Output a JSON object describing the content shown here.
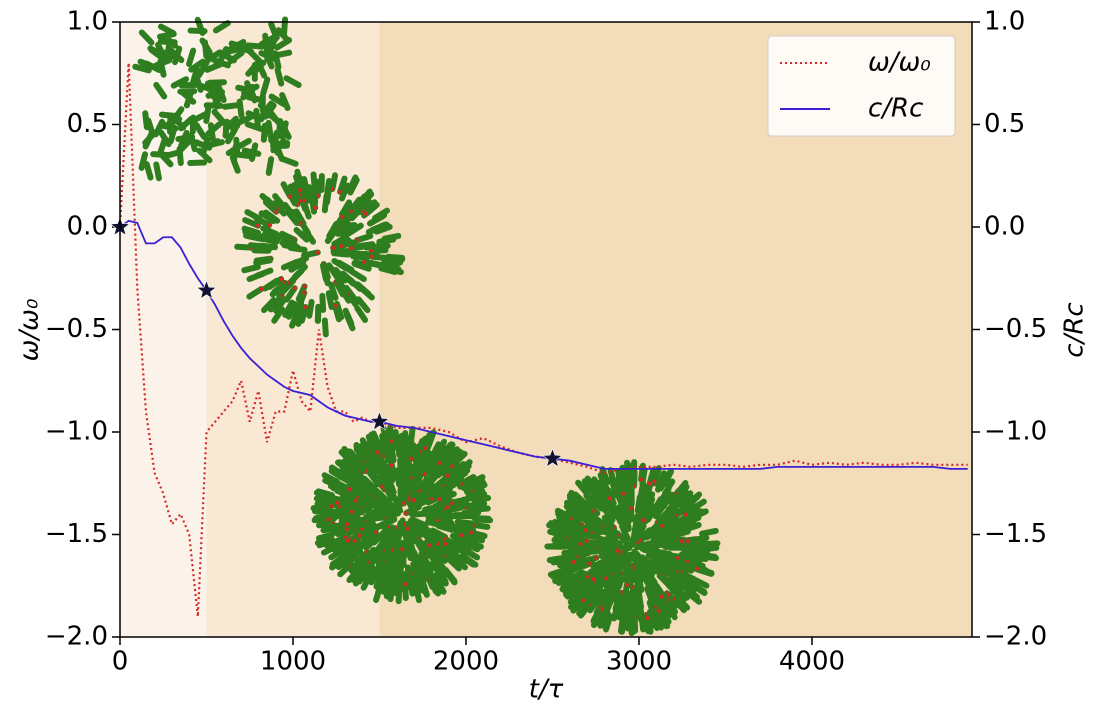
{
  "chart_data": {
    "type": "line",
    "x": [
      0,
      50,
      100,
      150,
      200,
      250,
      300,
      350,
      400,
      450,
      500,
      550,
      600,
      650,
      700,
      750,
      800,
      850,
      900,
      950,
      1000,
      1050,
      1100,
      1150,
      1200,
      1250,
      1300,
      1350,
      1400,
      1450,
      1500,
      1600,
      1700,
      1800,
      1900,
      2000,
      2100,
      2200,
      2300,
      2400,
      2500,
      2600,
      2700,
      2800,
      2900,
      3000,
      3100,
      3200,
      3300,
      3400,
      3500,
      3600,
      3700,
      3800,
      3900,
      4000,
      4100,
      4200,
      4300,
      4400,
      4500,
      4600,
      4700,
      4800,
      4900
    ],
    "series": [
      {
        "name": "ω/ω₀",
        "color": "#d62728",
        "style": "dotted",
        "values": [
          0.0,
          0.8,
          -0.3,
          -0.9,
          -1.2,
          -1.3,
          -1.45,
          -1.4,
          -1.5,
          -1.9,
          -1.0,
          -0.95,
          -0.9,
          -0.85,
          -0.75,
          -0.95,
          -0.8,
          -1.05,
          -0.9,
          -0.9,
          -0.7,
          -0.85,
          -0.9,
          -0.5,
          -0.78,
          -0.9,
          -0.9,
          -0.95,
          -0.93,
          -0.95,
          -0.95,
          -0.98,
          -0.98,
          -0.98,
          -1.0,
          -1.05,
          -1.03,
          -1.07,
          -1.1,
          -1.12,
          -1.13,
          -1.15,
          -1.17,
          -1.2,
          -1.18,
          -1.17,
          -1.17,
          -1.16,
          -1.17,
          -1.16,
          -1.16,
          -1.17,
          -1.16,
          -1.16,
          -1.14,
          -1.16,
          -1.15,
          -1.16,
          -1.15,
          -1.16,
          -1.16,
          -1.15,
          -1.16,
          -1.16,
          -1.16
        ]
      },
      {
        "name": "c/Rc",
        "color": "#3a1fd6",
        "style": "solid",
        "axis": "y2",
        "values": [
          0.0,
          0.03,
          0.02,
          -0.08,
          -0.08,
          -0.05,
          -0.05,
          -0.1,
          -0.18,
          -0.25,
          -0.31,
          -0.38,
          -0.46,
          -0.53,
          -0.59,
          -0.64,
          -0.68,
          -0.72,
          -0.75,
          -0.78,
          -0.8,
          -0.81,
          -0.82,
          -0.85,
          -0.88,
          -0.9,
          -0.92,
          -0.93,
          -0.94,
          -0.95,
          -0.95,
          -0.97,
          -0.98,
          -1.0,
          -1.02,
          -1.04,
          -1.06,
          -1.08,
          -1.1,
          -1.12,
          -1.13,
          -1.14,
          -1.16,
          -1.18,
          -1.18,
          -1.18,
          -1.18,
          -1.18,
          -1.18,
          -1.18,
          -1.18,
          -1.18,
          -1.18,
          -1.17,
          -1.17,
          -1.17,
          -1.17,
          -1.17,
          -1.17,
          -1.17,
          -1.17,
          -1.17,
          -1.17,
          -1.18,
          -1.18
        ]
      }
    ],
    "markers": {
      "x": [
        0,
        500,
        1500,
        2500
      ],
      "values": [
        0.0,
        -0.31,
        -0.95,
        -1.13
      ],
      "color": "#111133"
    },
    "regions": [
      {
        "x0": 0,
        "x1": 500,
        "color": "#fbf3ea"
      },
      {
        "x0": 500,
        "x1": 1500,
        "color": "#f9e8d4"
      },
      {
        "x0": 1500,
        "x1": 4925,
        "color": "#f3dcba"
      }
    ],
    "xlabel": "t/τ",
    "ylabel": "ω/ω₀",
    "y2label": "c/Rc",
    "xlim": [
      0,
      4925
    ],
    "ylim": [
      -2.0,
      1.0
    ],
    "y2lim": [
      -2.0,
      1.0
    ],
    "xticks": [
      0,
      1000,
      2000,
      3000,
      4000
    ],
    "yticks": [
      {
        "value": 1.0,
        "label": "1.0"
      },
      {
        "value": 0.5,
        "label": "0.5"
      },
      {
        "value": 0.0,
        "label": "0.0"
      },
      {
        "value": -0.5,
        "label": "−0.5"
      },
      {
        "value": -1.0,
        "label": "−1.0"
      },
      {
        "value": -1.5,
        "label": "−1.5"
      },
      {
        "value": -2.0,
        "label": "−2.0"
      }
    ],
    "y2ticks": [
      {
        "value": 1.0,
        "label": "1.0"
      },
      {
        "value": 0.5,
        "label": "0.5"
      },
      {
        "value": 0.0,
        "label": "0.0"
      },
      {
        "value": -0.5,
        "label": "−0.5"
      },
      {
        "value": -1.0,
        "label": "−1.0"
      },
      {
        "value": -1.5,
        "label": "−1.5"
      },
      {
        "value": -2.0,
        "label": "−2.0"
      }
    ],
    "legend": "upper right"
  }
}
